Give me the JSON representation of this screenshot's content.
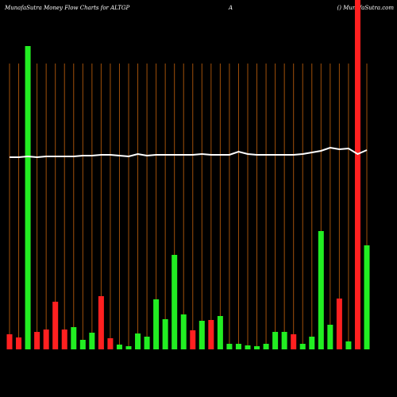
{
  "chart_data": {
    "type": "bar",
    "title": "MunafaSutra  Money Flow  Charts for ALTGP",
    "subtitle": "A",
    "source": "() MunafaSutra.com",
    "ylim": [
      0,
      440
    ],
    "categories": [
      null,
      null,
      null,
      null,
      null,
      null,
      null,
      null,
      null,
      null,
      null,
      null,
      null,
      null,
      null,
      null,
      null,
      null,
      null,
      null,
      null,
      null,
      null,
      null,
      null,
      null,
      null,
      null,
      null,
      null,
      null,
      null,
      null,
      null,
      null,
      null,
      null,
      null,
      null,
      null
    ],
    "series": [
      {
        "values": [
          19,
          15,
          382,
          22,
          25,
          60,
          25,
          28,
          12,
          21,
          67,
          14,
          6,
          4,
          20,
          16,
          63,
          38,
          119,
          44,
          24,
          36,
          37,
          42,
          7,
          7,
          5,
          4,
          7,
          22,
          22,
          19,
          7,
          16,
          149,
          31,
          64,
          10,
          440,
          131
        ],
        "colors": [
          "#ff2020",
          "#ff2020",
          "#22ee22",
          "#ff2020",
          "#ff2020",
          "#ff2020",
          "#ff2020",
          "#22ee22",
          "#22ee22",
          "#22ee22",
          "#ff2020",
          "#ff2020",
          "#22ee22",
          "#22ee22",
          "#22ee22",
          "#22ee22",
          "#22ee22",
          "#22ee22",
          "#22ee22",
          "#22ee22",
          "#ff2020",
          "#22ee22",
          "#ff2020",
          "#22ee22",
          "#22ee22",
          "#22ee22",
          "#22ee22",
          "#22ee22",
          "#22ee22",
          "#22ee22",
          "#22ee22",
          "#ff2020",
          "#22ee22",
          "#22ee22",
          "#22ee22",
          "#22ee22",
          "#ff2020",
          "#22ee22",
          "#ff2020",
          "#22ee22"
        ]
      },
      {
        "type": "line",
        "color": "#ffffff",
        "values": [
          242,
          242,
          243,
          242,
          243,
          243,
          243,
          243,
          244,
          244,
          245,
          245,
          244,
          243,
          246,
          244,
          245,
          245,
          245,
          245,
          245,
          246,
          245,
          245,
          245,
          249,
          246,
          245,
          245,
          245,
          245,
          245,
          246,
          248,
          250,
          254,
          252,
          253,
          246,
          251
        ]
      }
    ],
    "grid_color": "#a0500a"
  }
}
